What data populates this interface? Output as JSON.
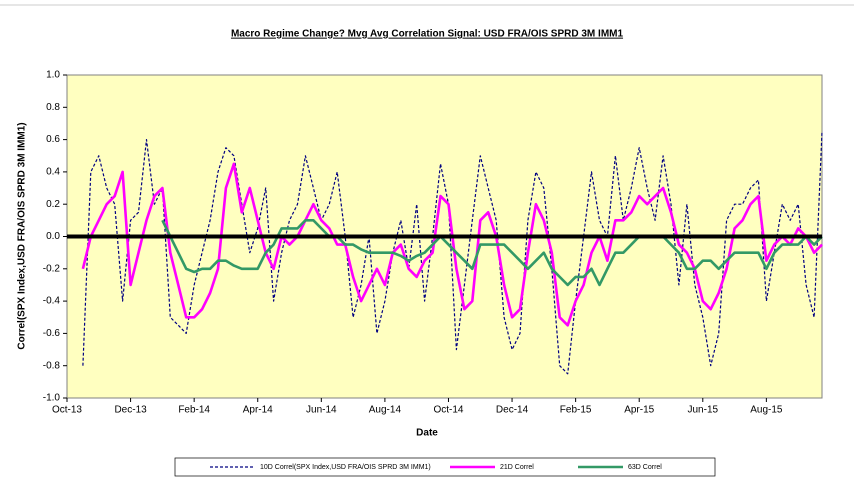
{
  "chart_data": {
    "type": "line",
    "title": "Macro Regime Change? Mvg Avg Correlation Signal: USD FRA/OIS SPRD 3M IMM1",
    "x_label": "Date",
    "y_label": "Correl(SPX Index,USD FRA/OIS SPRD 3M IMM1)",
    "categories": [
      "Oct-13",
      null,
      null,
      null,
      null,
      null,
      null,
      null,
      "Dec-13",
      null,
      null,
      null,
      null,
      null,
      null,
      null,
      "Feb-14",
      null,
      null,
      null,
      null,
      null,
      null,
      null,
      "Apr-14",
      null,
      null,
      null,
      null,
      null,
      null,
      null,
      "Jun-14",
      null,
      null,
      null,
      null,
      null,
      null,
      null,
      "Aug-14",
      null,
      null,
      null,
      null,
      null,
      null,
      null,
      "Oct-14",
      null,
      null,
      null,
      null,
      null,
      null,
      null,
      "Dec-14",
      null,
      null,
      null,
      null,
      null,
      null,
      null,
      "Feb-15",
      null,
      null,
      null,
      null,
      null,
      null,
      null,
      "Apr-15",
      null,
      null,
      null,
      null,
      null,
      null,
      null,
      "Jun-15",
      null,
      null,
      null,
      null,
      null,
      null,
      null,
      "Aug-15",
      null,
      null,
      null,
      null,
      null,
      null,
      null
    ],
    "series": [
      {
        "name": "10D Correl(SPX Index,USD FRA/OIS SPRD 3M IMM1)",
        "color": "#000080",
        "style": "dashed",
        "values": [
          null,
          null,
          -0.8,
          0.4,
          0.5,
          0.3,
          0.2,
          -0.4,
          0.1,
          0.15,
          0.6,
          0.2,
          0.3,
          -0.5,
          -0.55,
          -0.6,
          -0.3,
          -0.1,
          0.1,
          0.4,
          0.55,
          0.5,
          0.2,
          -0.1,
          0.05,
          0.3,
          -0.4,
          -0.1,
          0.1,
          0.2,
          0.5,
          0.3,
          0.1,
          0.2,
          0.4,
          0.0,
          -0.5,
          -0.3,
          0.0,
          -0.6,
          -0.4,
          -0.1,
          0.1,
          -0.2,
          0.2,
          -0.4,
          0.0,
          0.45,
          0.2,
          -0.7,
          -0.3,
          0.1,
          0.5,
          0.3,
          0.1,
          -0.5,
          -0.7,
          -0.6,
          0.1,
          0.4,
          0.3,
          -0.2,
          -0.8,
          -0.85,
          -0.4,
          0.0,
          0.4,
          0.1,
          0.0,
          0.5,
          0.1,
          0.3,
          0.55,
          0.3,
          0.1,
          0.5,
          0.2,
          -0.3,
          0.2,
          -0.3,
          -0.5,
          -0.8,
          -0.6,
          0.1,
          0.2,
          0.2,
          0.3,
          0.35,
          -0.4,
          -0.1,
          0.2,
          0.1,
          0.2,
          -0.3,
          -0.5,
          0.65
        ]
      },
      {
        "name": "21D Correl",
        "color": "#ff00ff",
        "style": "solid",
        "values": [
          null,
          null,
          -0.2,
          0.0,
          0.1,
          0.2,
          0.25,
          0.4,
          -0.3,
          -0.1,
          0.1,
          0.25,
          0.3,
          -0.1,
          -0.3,
          -0.5,
          -0.5,
          -0.45,
          -0.35,
          -0.2,
          0.3,
          0.45,
          0.15,
          0.3,
          0.1,
          -0.1,
          -0.2,
          0.0,
          -0.05,
          0.0,
          0.1,
          0.2,
          0.1,
          0.05,
          -0.05,
          -0.05,
          -0.25,
          -0.4,
          -0.3,
          -0.2,
          -0.3,
          -0.1,
          -0.05,
          -0.2,
          -0.25,
          -0.15,
          -0.1,
          0.25,
          0.2,
          -0.2,
          -0.45,
          -0.4,
          0.1,
          0.15,
          0.0,
          -0.3,
          -0.5,
          -0.45,
          -0.1,
          0.2,
          0.1,
          -0.1,
          -0.5,
          -0.55,
          -0.4,
          -0.3,
          -0.1,
          0.0,
          -0.15,
          0.1,
          0.1,
          0.15,
          0.25,
          0.2,
          0.25,
          0.3,
          0.15,
          -0.05,
          -0.1,
          -0.2,
          -0.4,
          -0.45,
          -0.35,
          -0.2,
          0.05,
          0.1,
          0.2,
          0.25,
          -0.15,
          -0.05,
          0.0,
          -0.05,
          0.05,
          0.0,
          -0.1,
          -0.05
        ]
      },
      {
        "name": "63D Correl",
        "color": "#339966",
        "style": "solid",
        "values": [
          null,
          null,
          null,
          null,
          null,
          null,
          null,
          null,
          null,
          null,
          null,
          null,
          0.1,
          0.0,
          -0.1,
          -0.2,
          -0.22,
          -0.2,
          -0.2,
          -0.15,
          -0.15,
          -0.18,
          -0.2,
          -0.2,
          -0.2,
          -0.1,
          -0.05,
          0.05,
          0.05,
          0.05,
          0.1,
          0.1,
          0.05,
          0.0,
          0.0,
          -0.05,
          -0.05,
          -0.08,
          -0.1,
          -0.1,
          -0.1,
          -0.1,
          -0.12,
          -0.15,
          -0.12,
          -0.1,
          -0.05,
          0.0,
          -0.05,
          -0.1,
          -0.15,
          -0.2,
          -0.05,
          -0.05,
          -0.05,
          -0.05,
          -0.1,
          -0.15,
          -0.2,
          -0.15,
          -0.1,
          -0.2,
          -0.25,
          -0.3,
          -0.25,
          -0.25,
          -0.2,
          -0.3,
          -0.2,
          -0.1,
          -0.1,
          -0.05,
          0.0,
          0.0,
          0.0,
          0.0,
          -0.05,
          -0.1,
          -0.2,
          -0.2,
          -0.15,
          -0.15,
          -0.2,
          -0.15,
          -0.1,
          -0.1,
          -0.1,
          -0.1,
          -0.2,
          -0.1,
          -0.05,
          -0.05,
          -0.05,
          0.0,
          -0.05,
          0.0
        ]
      }
    ],
    "ylim": [
      -1.0,
      1.0
    ],
    "yticks": [
      {
        "value": -1.0,
        "label": "-1.0"
      },
      {
        "value": -0.8,
        "label": "-0.8"
      },
      {
        "value": -0.6,
        "label": "-0.6"
      },
      {
        "value": -0.4,
        "label": "-0.4"
      },
      {
        "value": -0.2,
        "label": "-0.2"
      },
      {
        "value": 0.0,
        "label": "0.0"
      },
      {
        "value": 0.2,
        "label": "0.2"
      },
      {
        "value": 0.4,
        "label": "0.4"
      },
      {
        "value": 0.6,
        "label": "0.6"
      },
      {
        "value": 0.8,
        "label": "0.8"
      },
      {
        "value": 1.0,
        "label": "1.0"
      }
    ],
    "plot_background": "#ffffc0"
  }
}
